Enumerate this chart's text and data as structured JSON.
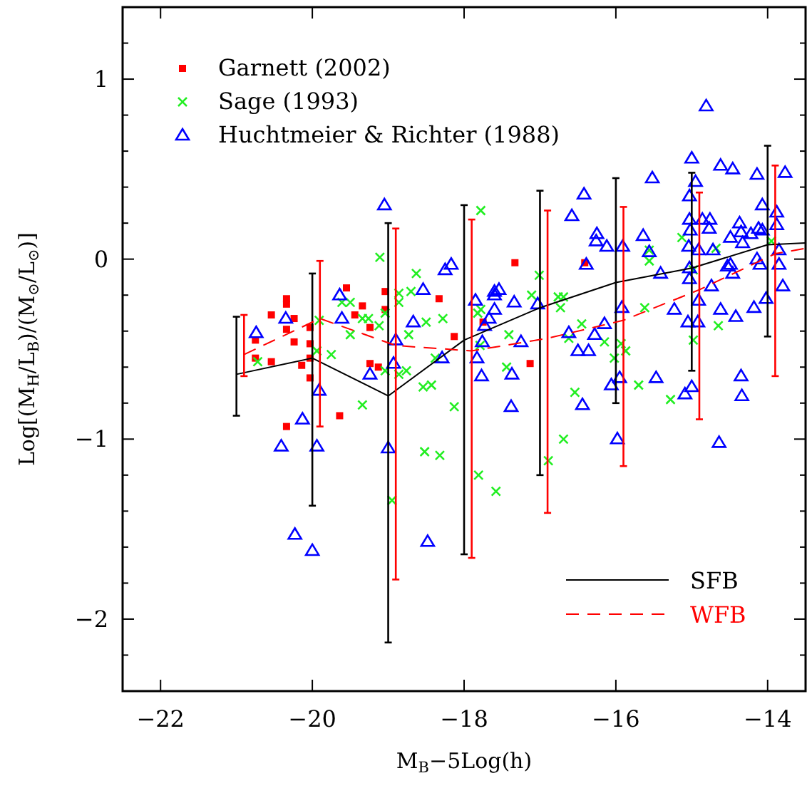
{
  "chart_data": {
    "type": "scatter",
    "xlabel": "M$_{B}$−5Log(h)",
    "ylabel": "Log[(M$_{H}$/L$_{B}$)/(M$_{⊙}$/L$_{⊙}$)]",
    "xlim": [
      -22.5,
      -13.5
    ],
    "ylim": [
      -2.4,
      1.4
    ],
    "xticks": [
      -22,
      -20,
      -18,
      -16,
      -14
    ],
    "yticks": [
      {
        "value": -2.4,
        "label": null
      },
      {
        "value": -2.2,
        "label": null
      },
      -2,
      {
        "value": -1.8,
        "label": null
      },
      {
        "value": -1.6,
        "label": null
      },
      {
        "value": -1.4,
        "label": null
      },
      {
        "value": -1.2,
        "label": null
      },
      -1,
      {
        "value": -0.8,
        "label": null
      },
      {
        "value": -0.6,
        "label": null
      },
      {
        "value": -0.4,
        "label": null
      },
      {
        "value": -0.2,
        "label": null
      },
      0,
      {
        "value": 0.2,
        "label": null
      },
      {
        "value": 0.4,
        "label": null
      },
      {
        "value": 0.6,
        "label": null
      },
      {
        "value": 0.8,
        "label": null
      },
      1,
      {
        "value": 1.2,
        "label": null
      }
    ],
    "legend": "top left",
    "series": [
      {
        "name": "Garnett (2002)",
        "type": "scatter",
        "marker": "square",
        "color": "#ff0000",
        "x": [
          -20.34,
          -20.34,
          -20.54,
          -20.24,
          -20.34,
          -20.75,
          -20.24,
          -20.03,
          -20.03,
          -20.75,
          -20.54,
          -20.14,
          -20.03,
          -20.03,
          -20.34,
          -19.64,
          -19.55,
          -19.34,
          -19.44,
          -19.24,
          -19.04,
          -19.04,
          -19.24,
          -19.13,
          -18.33,
          -18.13,
          -17.33,
          -17.13,
          -16.41,
          -17.75
        ],
        "values": [
          -0.22,
          -0.25,
          -0.31,
          -0.33,
          -0.39,
          -0.45,
          -0.46,
          -0.38,
          -0.47,
          -0.55,
          -0.57,
          -0.59,
          -0.55,
          -0.66,
          -0.93,
          -0.87,
          -0.16,
          -0.26,
          -0.31,
          -0.38,
          -0.18,
          -0.28,
          -0.58,
          -0.6,
          -0.22,
          -0.43,
          -0.02,
          -0.58,
          -0.02,
          -0.35
        ]
      },
      {
        "name": "Sage (1993)",
        "type": "scatter",
        "marker": "cross",
        "color": "#22ee22",
        "x": [
          -19.11,
          -18.63,
          -18.86,
          -18.7,
          -19.61,
          -19.5,
          -18.86,
          -19.34,
          -19.26,
          -19.12,
          -19.04,
          -19.91,
          -19.5,
          -18.73,
          -18.5,
          -18.28,
          -19.94,
          -19.75,
          -20.72,
          -19.04,
          -18.86,
          -18.76,
          -18.38,
          -18.54,
          -18.43,
          -19.34,
          -18.13,
          -18.52,
          -18.32,
          -18.95,
          -17.78,
          -17.01,
          -17.11,
          -16.76,
          -16.69,
          -16.73,
          -17.78,
          -17.82,
          -17.41,
          -17.79,
          -16.45,
          -16.62,
          -16.15,
          -15.62,
          -14.98,
          -14.65,
          -14.98,
          -15.93,
          -15.87,
          -16.02,
          -13.95,
          -17.44,
          -16.54,
          -15.7,
          -15.28,
          -16.69,
          -16.89,
          -17.81,
          -17.58,
          -15.13,
          -14.68,
          -15.56,
          -15.56
        ],
        "values": [
          0.01,
          -0.08,
          -0.19,
          -0.18,
          -0.24,
          -0.24,
          -0.24,
          -0.33,
          -0.33,
          -0.37,
          -0.3,
          -0.34,
          -0.42,
          -0.42,
          -0.35,
          -0.33,
          -0.51,
          -0.53,
          -0.57,
          -0.62,
          -0.64,
          -0.62,
          -0.55,
          -0.71,
          -0.7,
          -0.81,
          -0.82,
          -1.07,
          -1.09,
          -1.34,
          0.27,
          -0.09,
          -0.2,
          -0.21,
          -0.21,
          -0.27,
          -0.28,
          -0.3,
          -0.42,
          -0.48,
          -0.36,
          -0.44,
          -0.46,
          -0.27,
          -0.06,
          -0.37,
          -0.45,
          -0.47,
          -0.51,
          -0.55,
          0.1,
          -0.6,
          -0.74,
          -0.7,
          -0.78,
          -1.0,
          -1.12,
          -1.2,
          -1.29,
          0.12,
          0.06,
          0.05,
          -0.01
        ]
      },
      {
        "name": "Huchtmeier & Richter (1988)",
        "type": "scatter",
        "marker": "triangle",
        "color": "#0000ff",
        "x": [
          -19.05,
          -14.81,
          -15.0,
          -14.95,
          -15.03,
          -14.62,
          -14.46,
          -14.14,
          -13.77,
          -14.07,
          -15.52,
          -16.42,
          -16.58,
          -16.25,
          -16.26,
          -16.12,
          -15.91,
          -15.64,
          -15.56,
          -15.02,
          -15.04,
          -14.91,
          -15.03,
          -15.03,
          -14.86,
          -14.76,
          -14.77,
          -14.72,
          -14.49,
          -14.37,
          -14.35,
          -14.33,
          -14.22,
          -14.12,
          -14.07,
          -13.88,
          -13.88,
          -13.85,
          -14.14,
          -14.49,
          -14.53,
          -16.39,
          -20.74,
          -20.35,
          -19.64,
          -19.61,
          -19.24,
          -19.91,
          -20.13,
          -20.41,
          -19.94,
          -19.0,
          -18.93,
          -18.9,
          -18.67,
          -18.54,
          -18.25,
          -18.17,
          -18.29,
          -20.23,
          -18.48,
          -20.0,
          -17.38,
          -16.44,
          -15.98,
          -14.64,
          -17.85,
          -17.6,
          -17.54,
          -17.6,
          -17.34,
          -17.6,
          -17.67,
          -17.73,
          -17.76,
          -17.83,
          -17.77,
          -17.25,
          -17.03,
          -17.37,
          -16.62,
          -16.28,
          -16.15,
          -16.5,
          -16.36,
          -15.92,
          -16.06,
          -15.95,
          -15.47,
          -15.23,
          -15.41,
          -15.03,
          -15.05,
          -14.92,
          -14.91,
          -15.0,
          -15.09,
          -14.62,
          -14.42,
          -14.18,
          -14.02,
          -14.35,
          -14.34,
          -14.74,
          -14.46,
          -14.1,
          -13.85,
          -13.8
        ],
        "values": [
          0.3,
          0.85,
          0.56,
          0.43,
          0.35,
          0.52,
          0.5,
          0.47,
          0.48,
          0.3,
          0.45,
          0.36,
          0.24,
          0.14,
          0.1,
          0.07,
          0.07,
          0.13,
          0.04,
          0.16,
          0.07,
          0.05,
          -0.05,
          0.22,
          0.22,
          0.22,
          0.17,
          0.05,
          0.12,
          0.2,
          0.15,
          0.09,
          0.14,
          0.17,
          0.16,
          0.26,
          0.19,
          0.05,
          0.0,
          -0.03,
          -0.04,
          -0.03,
          -0.41,
          -0.33,
          -0.2,
          -0.33,
          -0.64,
          -0.73,
          -0.89,
          -1.04,
          -1.04,
          -1.05,
          -0.58,
          -0.45,
          -0.35,
          -0.17,
          -0.06,
          -0.03,
          -0.55,
          -1.53,
          -1.57,
          -1.62,
          -0.82,
          -0.81,
          -1.0,
          -1.02,
          -0.23,
          -0.18,
          -0.17,
          -0.2,
          -0.24,
          -0.28,
          -0.33,
          -0.37,
          -0.46,
          -0.55,
          -0.65,
          -0.46,
          -0.25,
          -0.64,
          -0.41,
          -0.42,
          -0.36,
          -0.51,
          -0.51,
          -0.27,
          -0.7,
          -0.66,
          -0.66,
          -0.28,
          -0.08,
          -0.11,
          -0.35,
          -0.35,
          -0.23,
          -0.71,
          -0.75,
          -0.28,
          -0.32,
          -0.27,
          -0.22,
          -0.65,
          -0.76,
          -0.15,
          -0.08,
          -0.03,
          -0.03,
          -0.15
        ]
      },
      {
        "name": "SFB",
        "type": "line",
        "marker": "none",
        "line_style": "solid",
        "color": "#000000",
        "x": [
          -21,
          -20,
          -19,
          -18,
          -17,
          -16,
          -15,
          -14,
          -13.5
        ],
        "values": [
          -0.64,
          -0.55,
          -0.76,
          -0.45,
          -0.27,
          -0.13,
          -0.05,
          0.08,
          0.09
        ],
        "errors": [
          [
            -0.87,
            -0.32
          ],
          [
            -1.37,
            -0.08
          ],
          [
            -2.13,
            0.2
          ],
          [
            -1.64,
            0.3
          ],
          [
            -1.2,
            0.38
          ],
          [
            -0.8,
            0.45
          ],
          [
            -0.62,
            0.48
          ],
          [
            -0.43,
            0.63
          ],
          null
        ]
      },
      {
        "name": "WFB",
        "type": "line",
        "marker": "none",
        "line_style": "dashed",
        "color": "#ff0000",
        "x": [
          -20.9,
          -19.9,
          -18.9,
          -17.9,
          -16.9,
          -15.9,
          -14.9,
          -13.9,
          -13.5
        ],
        "values": [
          -0.53,
          -0.33,
          -0.48,
          -0.51,
          -0.44,
          -0.34,
          -0.17,
          0.03,
          0.06
        ],
        "errors": [
          [
            -0.65,
            -0.31
          ],
          [
            -0.93,
            -0.01
          ],
          [
            -1.78,
            0.17
          ],
          [
            -1.66,
            0.22
          ],
          [
            -1.41,
            0.27
          ],
          [
            -1.15,
            0.29
          ],
          [
            -0.89,
            0.37
          ],
          [
            -0.65,
            0.52
          ],
          null
        ]
      }
    ]
  }
}
